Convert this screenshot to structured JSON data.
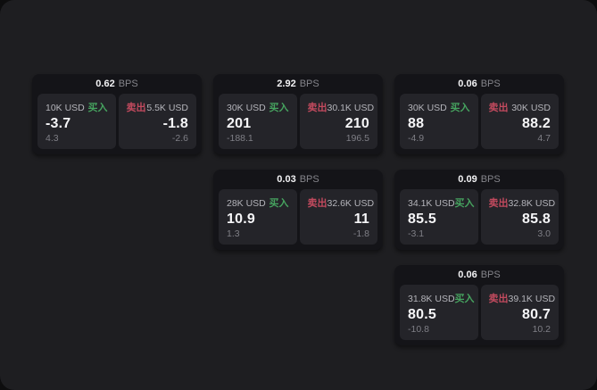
{
  "labels": {
    "bps_unit": "BPS",
    "buy": "买入",
    "sell": "卖出"
  },
  "colors": {
    "page_bg": "#1e1e21",
    "card_bg": "#141418",
    "panel_bg": "#242429",
    "buy_green": "#46a35f",
    "sell_red": "#c24a5e",
    "value_white": "#f6f6f8",
    "muted_gray": "#7f7f86"
  },
  "cards": [
    {
      "row": 1,
      "col": 1,
      "bps": "0.62",
      "buy": {
        "amount": "10K USD",
        "value": "-3.7",
        "sub": "4.3"
      },
      "sell": {
        "amount": "5.5K USD",
        "value": "-1.8",
        "sub": "-2.6"
      }
    },
    {
      "row": 1,
      "col": 2,
      "bps": "2.92",
      "buy": {
        "amount": "30K USD",
        "value": "201",
        "sub": "-188.1"
      },
      "sell": {
        "amount": "30.1K USD",
        "value": "210",
        "sub": "196.5"
      }
    },
    {
      "row": 1,
      "col": 3,
      "bps": "0.06",
      "buy": {
        "amount": "30K USD",
        "value": "88",
        "sub": "-4.9"
      },
      "sell": {
        "amount": "30K USD",
        "value": "88.2",
        "sub": "4.7"
      }
    },
    {
      "row": 2,
      "col": 2,
      "bps": "0.03",
      "buy": {
        "amount": "28K USD",
        "value": "10.9",
        "sub": "1.3"
      },
      "sell": {
        "amount": "32.6K USD",
        "value": "11",
        "sub": "-1.8"
      }
    },
    {
      "row": 2,
      "col": 3,
      "bps": "0.09",
      "buy": {
        "amount": "34.1K USD",
        "value": "85.5",
        "sub": "-3.1"
      },
      "sell": {
        "amount": "32.8K USD",
        "value": "85.8",
        "sub": "3.0"
      }
    },
    {
      "row": 3,
      "col": 3,
      "bps": "0.06",
      "buy": {
        "amount": "31.8K USD",
        "value": "80.5",
        "sub": "-10.8"
      },
      "sell": {
        "amount": "39.1K USD",
        "value": "80.7",
        "sub": "10.2"
      }
    }
  ]
}
